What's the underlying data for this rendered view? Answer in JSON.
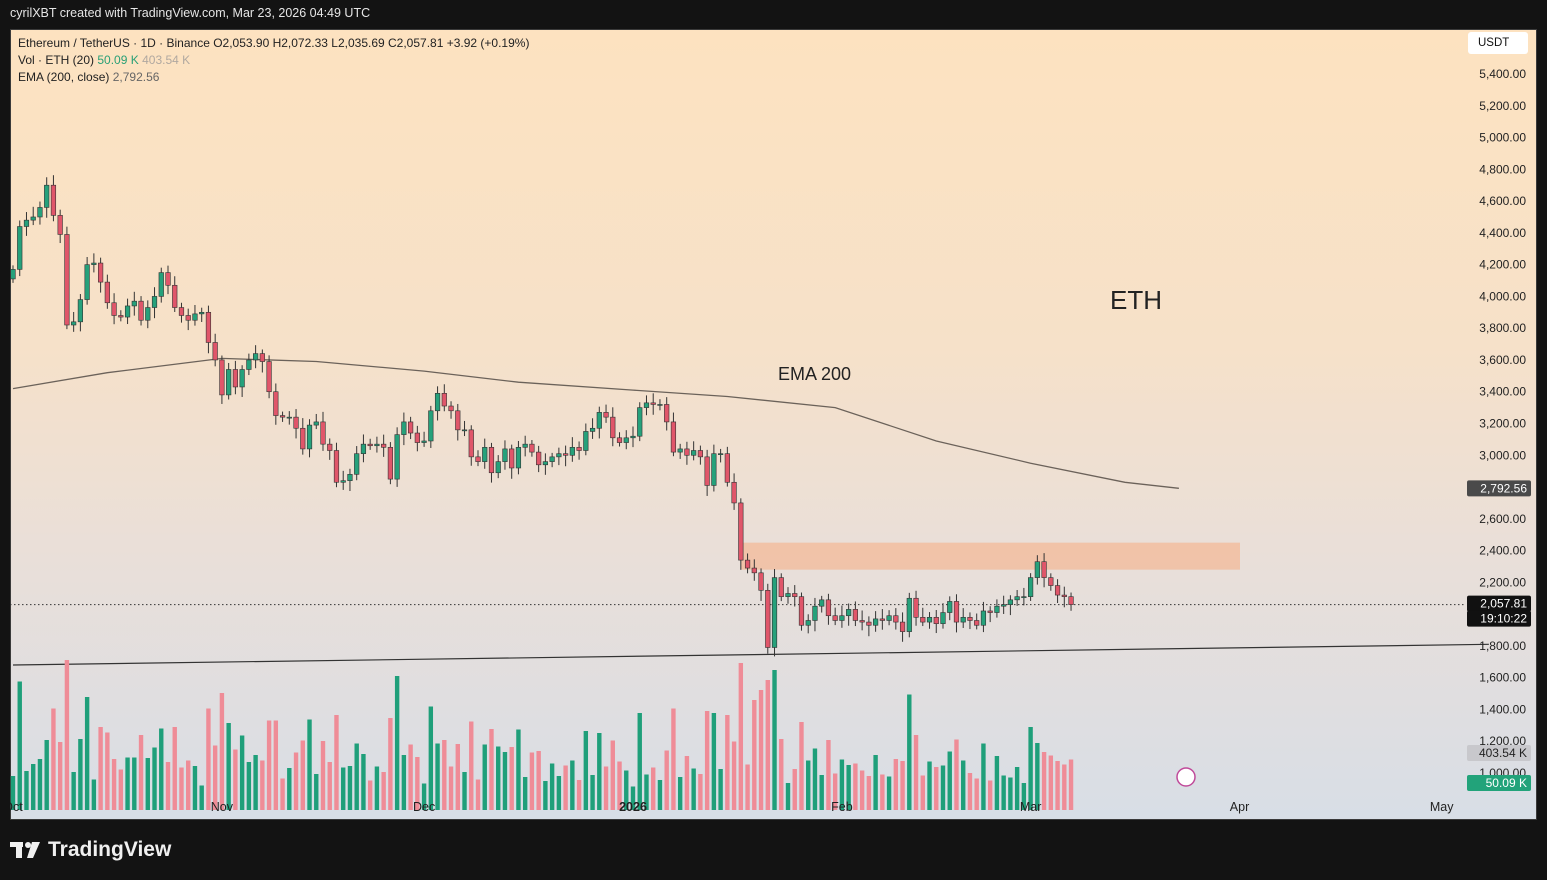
{
  "header": {
    "credit": "cyrilXBT created with TradingView.com, Mar 23, 2026 04:49 UTC"
  },
  "legend": {
    "line1": "Ethereum / TetherUS · 1D · Binance  O2,053.90  H2,072.33  L2,035.69  C2,057.81  +3.92 (+0.19%)",
    "vol_label": "Vol · ETH (20)",
    "vol_value": "50.09 K",
    "vol_ma": "403.54 K",
    "ema_label": "EMA (200, close)",
    "ema_value": "2,792.56"
  },
  "unit_button": "USDT",
  "brand": "TradingView",
  "colors": {
    "up": "#26a17b",
    "down": "#e0566a",
    "vol_up": "#1f9f7a",
    "vol_down": "#ef8c97",
    "ema": "#6b625a",
    "zone": "#f3b998"
  },
  "chart_data": {
    "type": "candlestick",
    "symbol": "Ethereum / TetherUS",
    "interval": "1D",
    "ylim": [
      1000,
      5400
    ],
    "y_ticks": [
      "5,400.00",
      "5,200.00",
      "5,000.00",
      "4,800.00",
      "4,600.00",
      "4,400.00",
      "4,200.00",
      "4,000.00",
      "3,800.00",
      "3,600.00",
      "3,400.00",
      "3,200.00",
      "3,000.00",
      "2,600.00",
      "2,400.00",
      "2,200.00",
      "1,800.00",
      "1,600.00",
      "1,400.00",
      "1,200.00",
      "1,000.00"
    ],
    "x_ticks": [
      "Oct",
      "Nov",
      "Dec",
      "2026",
      "Feb",
      "Mar",
      "Apr",
      "May"
    ],
    "last_price": "2,057.81",
    "countdown": "19:10:22",
    "ema_label_value": "2,792.56",
    "vol_ma_label": "403.54 K",
    "vol_label": "50.09 K",
    "annotations": [
      {
        "text": "ETH"
      },
      {
        "text": "EMA 200"
      }
    ],
    "resistance_zone": [
      2280,
      2450
    ],
    "support_line": {
      "from": {
        "date": "2025-10-01",
        "price": 1680
      },
      "to": {
        "date": "2026-05-08",
        "price": 1810
      }
    },
    "ema200": [
      {
        "date": "2025-10-01",
        "price": 3420
      },
      {
        "date": "2025-10-15",
        "price": 3520
      },
      {
        "date": "2025-11-01",
        "price": 3610
      },
      {
        "date": "2025-11-15",
        "price": 3590
      },
      {
        "date": "2025-12-01",
        "price": 3530
      },
      {
        "date": "2025-12-15",
        "price": 3460
      },
      {
        "date": "2026-01-01",
        "price": 3410
      },
      {
        "date": "2026-01-15",
        "price": 3370
      },
      {
        "date": "2026-01-31",
        "price": 3300
      },
      {
        "date": "2026-02-15",
        "price": 3090
      },
      {
        "date": "2026-03-01",
        "price": 2950
      },
      {
        "date": "2026-03-15",
        "price": 2830
      },
      {
        "date": "2026-03-23",
        "price": 2792
      }
    ],
    "start_date": "2025-10-01",
    "close": [
      4170,
      4440,
      4480,
      4500,
      4560,
      4700,
      4510,
      4390,
      3820,
      3840,
      3980,
      4200,
      4210,
      4090,
      3960,
      3880,
      3870,
      3940,
      3970,
      3850,
      3930,
      4000,
      4150,
      4070,
      3930,
      3880,
      3850,
      3890,
      3900,
      3710,
      3600,
      3380,
      3540,
      3430,
      3540,
      3600,
      3640,
      3590,
      3400,
      3250,
      3240,
      3240,
      3170,
      3040,
      3190,
      3210,
      3070,
      3030,
      2830,
      2840,
      2880,
      3010,
      3070,
      3060,
      3070,
      3050,
      2850,
      3130,
      3210,
      3140,
      3080,
      3090,
      3280,
      3390,
      3310,
      3280,
      3160,
      3160,
      2990,
      2960,
      3050,
      2890,
      2960,
      3040,
      2920,
      3050,
      3070,
      3020,
      2940,
      2960,
      2990,
      3010,
      3000,
      3050,
      3030,
      3150,
      3170,
      3270,
      3240,
      3110,
      3080,
      3110,
      3120,
      3300,
      3330,
      3320,
      3320,
      3210,
      3020,
      3040,
      3000,
      3030,
      2990,
      2810,
      3010,
      3010,
      2830,
      2700,
      2340,
      2290,
      2260,
      2150,
      1790,
      2230,
      2110,
      2130,
      2110,
      1930,
      1960,
      2050,
      2090,
      1990,
      1960,
      1990,
      2030,
      1960,
      1950,
      1930,
      1970,
      1960,
      1990,
      1950,
      1890,
      2100,
      1980,
      1950,
      1980,
      1940,
      2010,
      2080,
      1950,
      1980,
      1960,
      1930,
      2020,
      2010,
      2050,
      2060,
      2090,
      2110,
      2110,
      2230,
      2330,
      2230,
      2180,
      2120,
      2110,
      2060
    ]
  }
}
